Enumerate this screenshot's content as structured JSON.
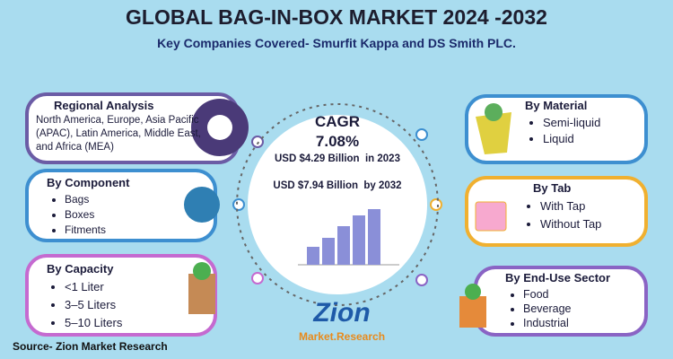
{
  "header": {
    "title": "GLOBAL BAG-IN-BOX MARKET 2024 -2032",
    "subtitle": "Key Companies Covered- Smurfit Kappa and DS Smith PLC."
  },
  "center": {
    "cagr_label": "CAGR",
    "cagr_value": "7.08%",
    "value_2023": "USD $4.29 Billion  in 2023",
    "value_2032": "USD $7.94 Billion  by 2032"
  },
  "left_panels": [
    {
      "title": "Regional Analysis",
      "text": "North America, Europe, Asia Pacific (APAC), Latin America, Middle East, and Africa (MEA)"
    },
    {
      "title": "By Component",
      "items": [
        "Bags",
        "Boxes",
        "Fitments"
      ]
    },
    {
      "title": "By Capacity",
      "items": [
        "<1 Liter",
        "3–5 Liters",
        "5–10 Liters"
      ]
    }
  ],
  "right_panels": [
    {
      "title": "By Material",
      "items": [
        "Semi-liquid",
        "Liquid"
      ]
    },
    {
      "title": "By Tab",
      "items": [
        "With Tap",
        "Without Tap"
      ]
    },
    {
      "title": "By End-Use Sector",
      "items": [
        "Food",
        "Beverage",
        "Industrial"
      ]
    }
  ],
  "logo": {
    "name": "Zion",
    "tagline": "Market.Research"
  },
  "footer": {
    "source": "Source- Zion Market Research"
  }
}
